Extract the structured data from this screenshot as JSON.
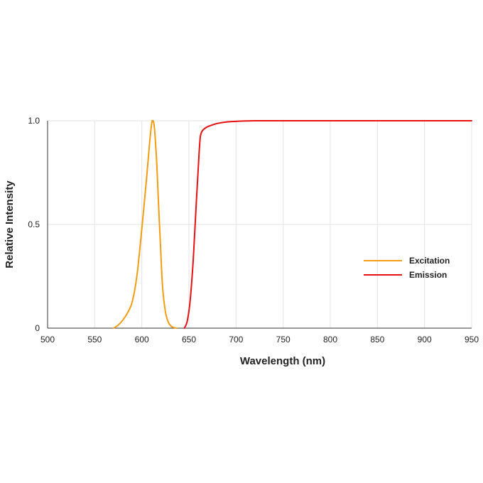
{
  "chart_data": {
    "type": "line",
    "xlabel": "Wavelength (nm)",
    "ylabel": "Relative Intensity",
    "xlim": [
      500,
      950
    ],
    "ylim": [
      0,
      1
    ],
    "x_ticks": [
      "500",
      "550",
      "600",
      "650",
      "700",
      "750",
      "800",
      "850",
      "900",
      "950"
    ],
    "y_ticks": [
      "0",
      "0.5",
      "1.0"
    ],
    "grid": true,
    "legend_position": "right",
    "series": [
      {
        "name": "Excitation",
        "color": "#f39c12",
        "x": [
          570,
          575,
          580,
          585,
          590,
          595,
          600,
          605,
          608,
          610,
          611,
          612,
          613,
          614,
          616,
          618,
          620,
          622,
          625,
          628,
          631,
          634,
          637
        ],
        "y": [
          0,
          0.015,
          0.04,
          0.075,
          0.13,
          0.26,
          0.48,
          0.72,
          0.88,
          0.97,
          1.0,
          1.0,
          0.98,
          0.93,
          0.78,
          0.57,
          0.38,
          0.2,
          0.08,
          0.03,
          0.01,
          0.003,
          0
        ]
      },
      {
        "name": "Emission",
        "color": "#e81010",
        "x": [
          645,
          648,
          651,
          654,
          656,
          658,
          660,
          661,
          662,
          663,
          664,
          666,
          670,
          675,
          680,
          690,
          700,
          710,
          720,
          750,
          800,
          850,
          900,
          950
        ],
        "y": [
          0,
          0.03,
          0.12,
          0.29,
          0.45,
          0.62,
          0.78,
          0.86,
          0.92,
          0.94,
          0.95,
          0.96,
          0.972,
          0.98,
          0.987,
          0.994,
          0.997,
          0.999,
          1.0,
          1.0,
          1.0,
          1.0,
          1.0,
          1.0
        ]
      }
    ]
  }
}
